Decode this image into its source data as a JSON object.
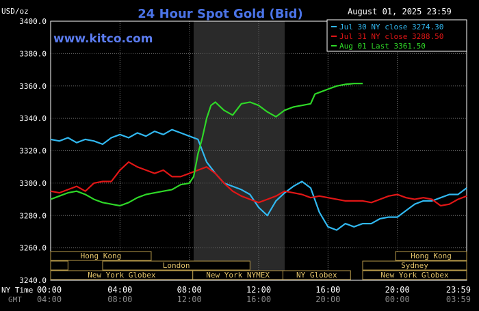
{
  "chart_data": {
    "type": "line",
    "title": "24 Hour Spot Gold (Bid)",
    "date_label": "August 01, 2025 23:59",
    "brand": "www.kitco.com",
    "ylabel": "USD/oz",
    "ylim": [
      3240,
      3400
    ],
    "yticks": [
      "3400.0",
      "3380.0",
      "3360.0",
      "3340.0",
      "3320.0",
      "3300.0",
      "3280.0",
      "3260.0",
      "3240.0"
    ],
    "xlim": [
      0,
      24
    ],
    "xticks": [
      {
        "x": 0,
        "ny": "00:00",
        "gmt": "04:00"
      },
      {
        "x": 4,
        "ny": "04:00",
        "gmt": "08:00"
      },
      {
        "x": 8,
        "ny": "08:00",
        "gmt": "12:00"
      },
      {
        "x": 12,
        "ny": "12:00",
        "gmt": "16:00"
      },
      {
        "x": 16,
        "ny": "16:00",
        "gmt": "20:00"
      },
      {
        "x": 20,
        "ny": "20:00",
        "gmt": "00:00"
      },
      {
        "x": 24,
        "ny": "23:59",
        "gmt": "03:59"
      }
    ],
    "x_row_labels": {
      "ny": "NY Time",
      "gmt": "GMT"
    },
    "shaded_range": [
      8.25,
      13.5
    ],
    "grid": true,
    "legend_position": "top-right",
    "colors": {
      "background": "#000000",
      "plot_bg": "#000000",
      "shade": "#2a2a2a",
      "grid": "#6e6e6e",
      "axis_text": "#ffffff",
      "title": "#4b74e8",
      "brand": "#5b7cf0",
      "session_text": "#e2c36a",
      "session_border": "#b89a4a"
    },
    "series": [
      {
        "name": "Jul 30 NY close 3274.30",
        "color": "#31b8f0",
        "x": [
          0,
          0.5,
          1,
          1.5,
          2,
          2.5,
          3,
          3.5,
          4,
          4.5,
          5,
          5.5,
          6,
          6.5,
          7,
          7.5,
          8,
          8.5,
          9,
          9.5,
          10,
          10.5,
          11,
          11.5,
          12,
          12.5,
          13,
          13.5,
          14,
          14.5,
          15,
          15.5,
          16,
          16.5,
          17,
          17.5,
          18,
          18.5,
          19,
          19.5,
          20,
          20.5,
          21,
          21.5,
          22,
          22.5,
          23,
          23.5,
          24
        ],
        "y": [
          3327,
          3326,
          3328,
          3325,
          3327,
          3326,
          3324,
          3328,
          3330,
          3328,
          3331,
          3329,
          3332,
          3330,
          3333,
          3331,
          3329,
          3327,
          3313,
          3306,
          3300,
          3298,
          3296,
          3293,
          3285,
          3280,
          3289,
          3294,
          3298,
          3301,
          3297,
          3282,
          3273,
          3271,
          3275,
          3273,
          3275,
          3275,
          3278,
          3279,
          3279,
          3283,
          3287,
          3289,
          3289,
          3291,
          3293,
          3293,
          3297
        ]
      },
      {
        "name": "Jul 31 NY close 3288.50",
        "color": "#e11616",
        "x": [
          0,
          0.5,
          1,
          1.5,
          2,
          2.5,
          3,
          3.5,
          4,
          4.5,
          5,
          5.5,
          6,
          6.5,
          7,
          7.5,
          8,
          8.5,
          9,
          9.5,
          10,
          10.5,
          11,
          11.5,
          12,
          12.5,
          13,
          13.5,
          14,
          14.5,
          15,
          15.5,
          16,
          16.5,
          17,
          17.5,
          18,
          18.5,
          19,
          19.5,
          20,
          20.5,
          21,
          21.5,
          22,
          22.5,
          23,
          23.5,
          24
        ],
        "y": [
          3295,
          3294,
          3296,
          3298,
          3295,
          3300,
          3301,
          3301,
          3308,
          3313,
          3310,
          3308,
          3306,
          3308,
          3304,
          3304,
          3306,
          3308,
          3310,
          3306,
          3300,
          3295,
          3292,
          3290,
          3288,
          3290,
          3292,
          3295,
          3294,
          3293,
          3291,
          3292,
          3291,
          3290,
          3289,
          3289,
          3289,
          3288,
          3290,
          3292,
          3293,
          3291,
          3290,
          3291,
          3290,
          3286,
          3287,
          3290,
          3292
        ]
      },
      {
        "name": "Aug 01 Last 3361.50",
        "color": "#2fd828",
        "x": [
          0,
          0.5,
          1,
          1.5,
          2,
          2.5,
          3,
          3.5,
          4,
          4.5,
          5,
          5.5,
          6,
          6.5,
          7,
          7.5,
          8,
          8.25,
          8.5,
          8.75,
          9,
          9.25,
          9.5,
          10,
          10.5,
          11,
          11.5,
          12,
          12.5,
          13,
          13.5,
          14,
          14.5,
          15,
          15.25,
          15.5,
          16,
          16.5,
          17,
          17.5,
          18
        ],
        "y": [
          3290,
          3292,
          3294,
          3295,
          3293,
          3290,
          3288,
          3287,
          3286,
          3288,
          3291,
          3293,
          3294,
          3295,
          3296,
          3299,
          3300,
          3304,
          3318,
          3328,
          3340,
          3348,
          3350,
          3345,
          3342,
          3349,
          3350,
          3348,
          3344,
          3341,
          3345,
          3347,
          3348,
          3349,
          3355,
          3356,
          3358,
          3360,
          3361,
          3361.5,
          3361.5
        ]
      }
    ],
    "sessions": [
      {
        "label": "Hong Kong",
        "start": 0,
        "end": 5.8,
        "row": 0
      },
      {
        "label": "Hong Kong",
        "start": 19.9,
        "end": 24,
        "row": 0
      },
      {
        "label": "",
        "start": 0,
        "end": 1,
        "row": 1
      },
      {
        "label": "London",
        "start": 3,
        "end": 11.5,
        "row": 1
      },
      {
        "label": "Sydney",
        "start": 18,
        "end": 24,
        "row": 1
      },
      {
        "label": "New York Globex",
        "start": 0,
        "end": 8.2,
        "row": 2
      },
      {
        "label": "New York NYMEX",
        "start": 8.2,
        "end": 13.4,
        "row": 2
      },
      {
        "label": "NY Globex",
        "start": 13.4,
        "end": 17.3,
        "row": 2
      },
      {
        "label": "New York Globex",
        "start": 18,
        "end": 24,
        "row": 2
      }
    ]
  }
}
